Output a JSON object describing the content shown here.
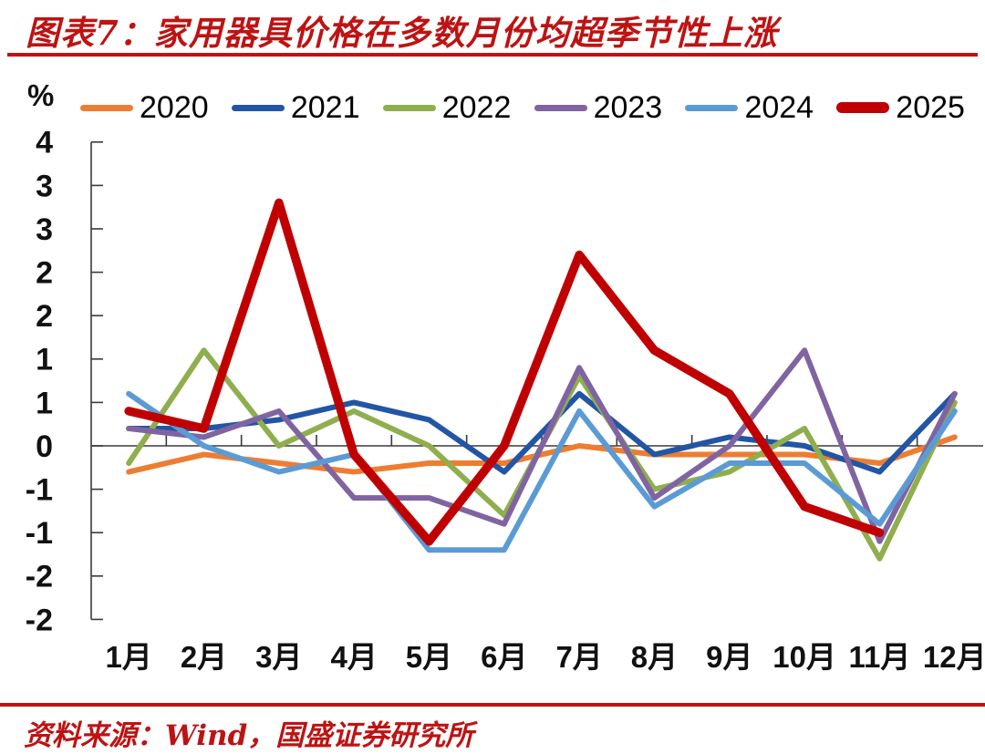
{
  "footer": {
    "source": "资料来源：Wind，国盛证券研究所"
  },
  "chart_data": {
    "type": "line",
    "title": "图表7：家用器具价格在多数月份均超季节性上涨",
    "xlabel": "",
    "ylabel": "%",
    "unit_label": "%",
    "legend_position": "top",
    "grid": false,
    "categories": [
      "1月",
      "2月",
      "3月",
      "4月",
      "5月",
      "6月",
      "7月",
      "8月",
      "9月",
      "10月",
      "11月",
      "12月"
    ],
    "y_axis": {
      "min": -2.0,
      "max": 3.5,
      "step": 0.5,
      "tick_labels_displayed": [
        "4",
        "3",
        "3",
        "2",
        "2",
        "1",
        "1",
        "0",
        "-1",
        "-1",
        "-2",
        "-2"
      ],
      "note": "tick labels are shown rounded to integers; true tick values run 3.5 to -2.0 in 0.5 steps"
    },
    "series": [
      {
        "name": "2020",
        "color": "#ED7D31",
        "thick": false,
        "values": [
          -0.3,
          -0.1,
          -0.2,
          -0.3,
          -0.2,
          -0.2,
          0.0,
          -0.1,
          -0.1,
          -0.1,
          -0.2,
          0.1
        ]
      },
      {
        "name": "2021",
        "color": "#2255A5",
        "thick": false,
        "values": [
          0.2,
          0.2,
          0.3,
          0.5,
          0.3,
          -0.3,
          0.6,
          -0.1,
          0.1,
          0.0,
          -0.3,
          0.6
        ]
      },
      {
        "name": "2022",
        "color": "#8FAE4E",
        "thick": false,
        "values": [
          -0.2,
          1.1,
          0.0,
          0.4,
          0.0,
          -0.8,
          0.8,
          -0.5,
          -0.3,
          0.2,
          -1.3,
          0.5
        ]
      },
      {
        "name": "2023",
        "color": "#8064A2",
        "thick": false,
        "values": [
          0.2,
          0.1,
          0.4,
          -0.6,
          -0.6,
          -0.9,
          0.9,
          -0.6,
          0.0,
          1.1,
          -1.1,
          0.6
        ]
      },
      {
        "name": "2024",
        "color": "#5B9BD5",
        "thick": false,
        "values": [
          0.6,
          0.0,
          -0.3,
          -0.1,
          -1.2,
          -1.2,
          0.4,
          -0.7,
          -0.2,
          -0.2,
          -0.9,
          0.4
        ]
      },
      {
        "name": "2025",
        "color": "#C00000",
        "thick": true,
        "values": [
          0.4,
          0.2,
          2.8,
          -0.1,
          -1.1,
          0.0,
          2.2,
          1.1,
          0.6,
          -0.7,
          -1.0,
          null
        ]
      }
    ],
    "axis_color": "#3A3A3A",
    "tick_text_color": "#111111"
  }
}
